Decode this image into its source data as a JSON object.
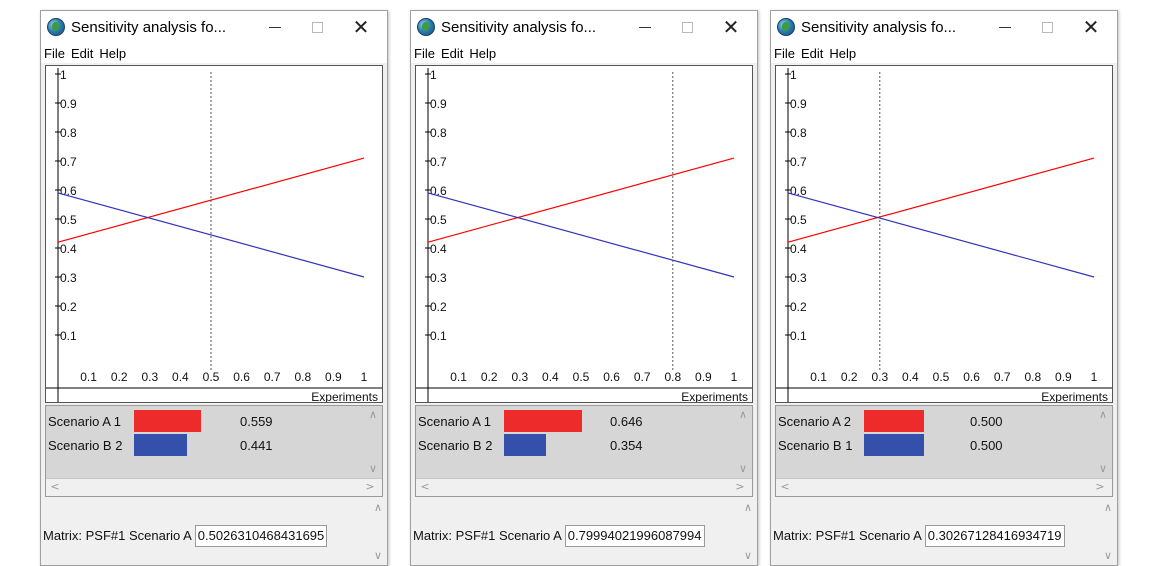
{
  "colors": {
    "series_a": "#ff0000",
    "series_b": "#3333bb",
    "bar_a": "#ee2b2b",
    "bar_b": "#3550aa",
    "crosshair": "#555555"
  },
  "windows": [
    {
      "title": "Sensitivity analysis fo...",
      "menu": [
        "File",
        "Edit",
        "Help"
      ],
      "chart_data": {
        "type": "line",
        "xlabel": "Experiments",
        "x_ticks": [
          "0.1",
          "0.2",
          "0.3",
          "0.4",
          "0.5",
          "0.6",
          "0.7",
          "0.8",
          "0.9",
          "1"
        ],
        "y_ticks": [
          "0.1",
          "0.2",
          "0.3",
          "0.4",
          "0.5",
          "0.6",
          "0.7",
          "0.8",
          "0.9",
          "1"
        ],
        "xlim": [
          0,
          1
        ],
        "ylim": [
          0,
          1
        ],
        "series": [
          {
            "color_key": "series_a",
            "x": [
              0,
              1
            ],
            "y": [
              0.42,
              0.71
            ]
          },
          {
            "color_key": "series_b",
            "x": [
              0,
              1
            ],
            "y": [
              0.59,
              0.3
            ]
          }
        ],
        "marker_x": 0.5
      },
      "results": [
        {
          "label": "Scenario A 1",
          "value": "0.559",
          "fraction": 0.559,
          "color_key": "bar_a"
        },
        {
          "label": "Scenario B 2",
          "value": "0.441",
          "fraction": 0.441,
          "color_key": "bar_b"
        }
      ],
      "status": {
        "prefix": "Matrix: PSF#1 Scenario A",
        "value": "0.5026310468431695"
      }
    },
    {
      "title": "Sensitivity analysis fo...",
      "menu": [
        "File",
        "Edit",
        "Help"
      ],
      "chart_data": {
        "type": "line",
        "xlabel": "Experiments",
        "x_ticks": [
          "0.1",
          "0.2",
          "0.3",
          "0.4",
          "0.5",
          "0.6",
          "0.7",
          "0.8",
          "0.9",
          "1"
        ],
        "y_ticks": [
          "0.1",
          "0.2",
          "0.3",
          "0.4",
          "0.5",
          "0.6",
          "0.7",
          "0.8",
          "0.9",
          "1"
        ],
        "xlim": [
          0,
          1
        ],
        "ylim": [
          0,
          1
        ],
        "series": [
          {
            "color_key": "series_a",
            "x": [
              0,
              1
            ],
            "y": [
              0.42,
              0.71
            ]
          },
          {
            "color_key": "series_b",
            "x": [
              0,
              1
            ],
            "y": [
              0.59,
              0.3
            ]
          }
        ],
        "marker_x": 0.8
      },
      "results": [
        {
          "label": "Scenario A 1",
          "value": "0.646",
          "fraction": 0.646,
          "color_key": "bar_a"
        },
        {
          "label": "Scenario B 2",
          "value": "0.354",
          "fraction": 0.354,
          "color_key": "bar_b"
        }
      ],
      "status": {
        "prefix": "Matrix: PSF#1 Scenario A",
        "value": "0.79994021996087994"
      }
    },
    {
      "title": "Sensitivity analysis fo...",
      "menu": [
        "File",
        "Edit",
        "Help"
      ],
      "chart_data": {
        "type": "line",
        "xlabel": "Experiments",
        "x_ticks": [
          "0.1",
          "0.2",
          "0.3",
          "0.4",
          "0.5",
          "0.6",
          "0.7",
          "0.8",
          "0.9",
          "1"
        ],
        "y_ticks": [
          "0.1",
          "0.2",
          "0.3",
          "0.4",
          "0.5",
          "0.6",
          "0.7",
          "0.8",
          "0.9",
          "1"
        ],
        "xlim": [
          0,
          1
        ],
        "ylim": [
          0,
          1
        ],
        "series": [
          {
            "color_key": "series_a",
            "x": [
              0,
              1
            ],
            "y": [
              0.42,
              0.71
            ]
          },
          {
            "color_key": "series_b",
            "x": [
              0,
              1
            ],
            "y": [
              0.59,
              0.3
            ]
          }
        ],
        "marker_x": 0.3
      },
      "results": [
        {
          "label": "Scenario A 2",
          "value": "0.500",
          "fraction": 0.5,
          "color_key": "bar_a"
        },
        {
          "label": "Scenario B 1",
          "value": "0.500",
          "fraction": 0.5,
          "color_key": "bar_b"
        }
      ],
      "status": {
        "prefix": "Matrix: PSF#1 Scenario A",
        "value": "0.30267128416934719"
      }
    }
  ]
}
